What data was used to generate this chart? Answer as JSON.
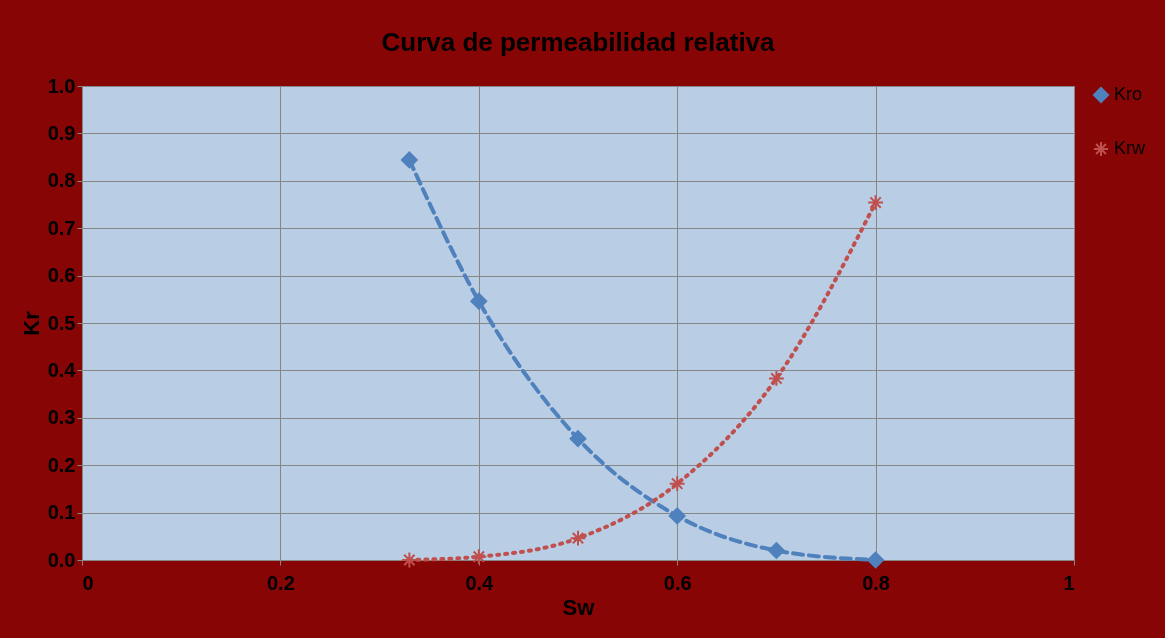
{
  "chart_data": {
    "type": "line",
    "title": "Curva de permeabilidad relativa",
    "xlabel": "Sw",
    "ylabel": "Kr",
    "x": [
      0.33,
      0.4,
      0.5,
      0.6,
      0.7,
      0.8
    ],
    "series": [
      {
        "name": "Kro",
        "color": "#4f81bd",
        "values": [
          0.844,
          0.546,
          0.256,
          0.093,
          0.02,
          0.0
        ],
        "marker": "diamond",
        "line_style": "dashed"
      },
      {
        "name": "Krw",
        "color": "#c0504d",
        "values": [
          0.0,
          0.007,
          0.046,
          0.161,
          0.383,
          0.754
        ],
        "marker": "cross",
        "line_style": "dotted"
      }
    ],
    "xlim": [
      0,
      1
    ],
    "xticks": [
      0,
      0.2,
      0.4,
      0.6,
      0.8,
      1
    ],
    "ylim": [
      0,
      1
    ],
    "yticks": [
      {
        "value": 0,
        "label": "0.0"
      },
      {
        "value": 0.1,
        "label": "0.1"
      },
      {
        "value": 0.2,
        "label": "0.2"
      },
      {
        "value": 0.3,
        "label": "0.3"
      },
      {
        "value": 0.4,
        "label": "0.4"
      },
      {
        "value": 0.5,
        "label": "0.5"
      },
      {
        "value": 0.6,
        "label": "0.6"
      },
      {
        "value": 0.7,
        "label": "0.7"
      },
      {
        "value": 0.8,
        "label": "0.8"
      },
      {
        "value": 0.9,
        "label": "0.9"
      },
      {
        "value": 1,
        "label": "1.0"
      }
    ],
    "grid": true,
    "legend": "right"
  }
}
